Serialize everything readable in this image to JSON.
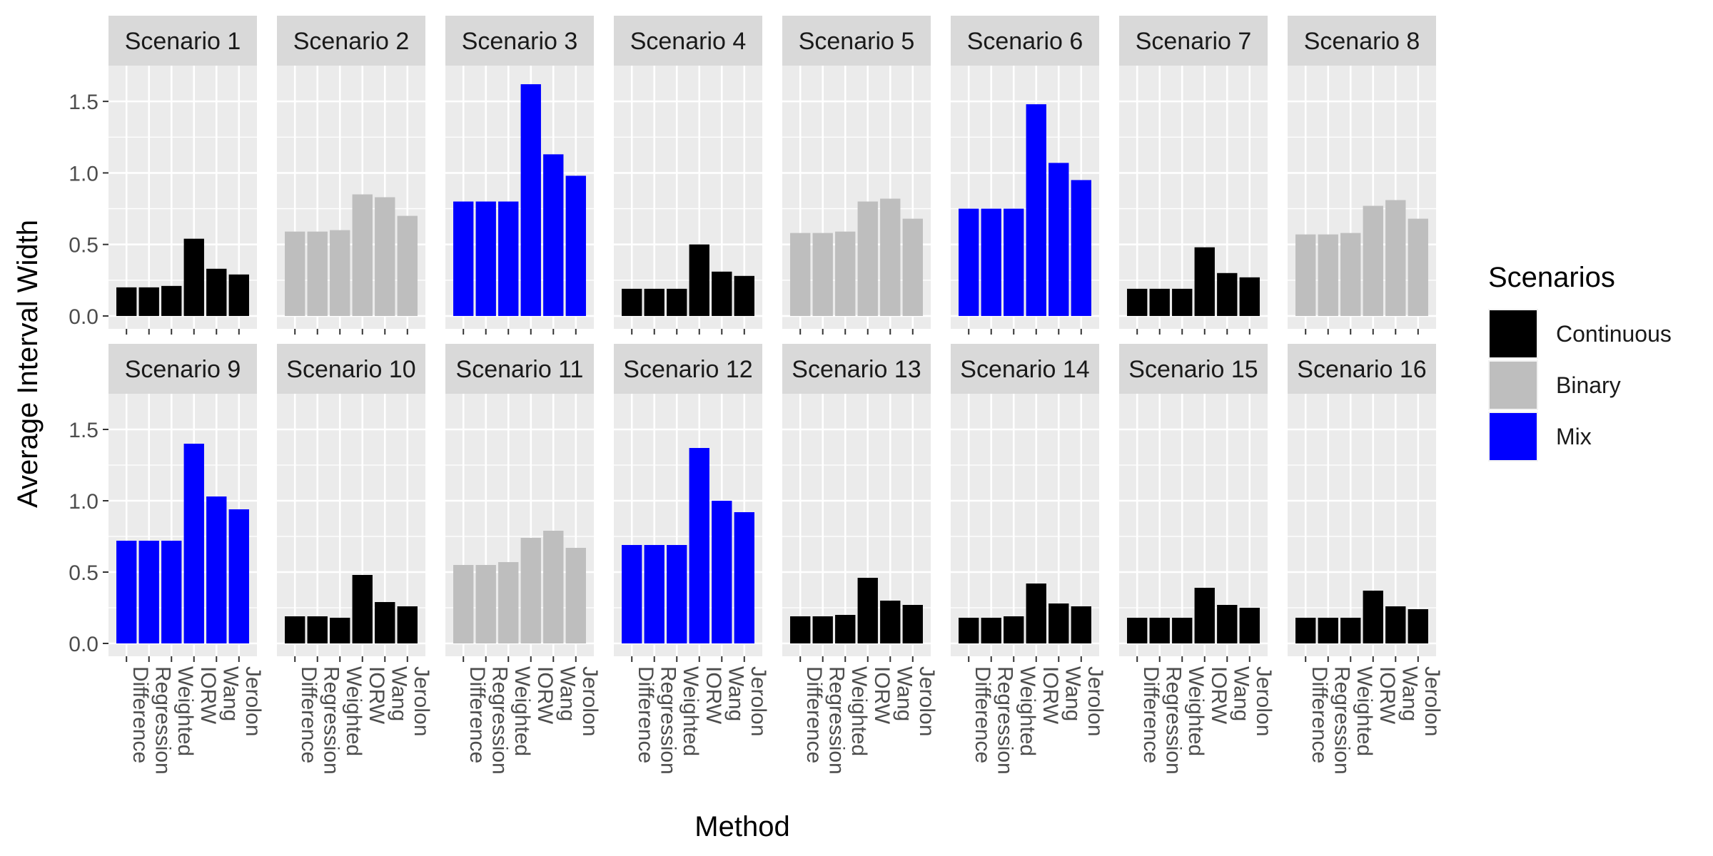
{
  "chart_data": {
    "type": "bar",
    "xlabel": "Method",
    "ylabel": "Average Interval Width",
    "ylim": [
      -0.09,
      1.75
    ],
    "yticks": [
      0.0,
      0.5,
      1.0,
      1.5
    ],
    "ytick_labels": [
      "0.0",
      "0.5",
      "1.0",
      "1.5"
    ],
    "categories": [
      "Difference",
      "Regression",
      "Weighted",
      "IORW",
      "Wang",
      "Jerolon"
    ],
    "legend": {
      "title": "Scenarios",
      "placement": "right",
      "entries": [
        {
          "name": "Continuous",
          "color": "#000000"
        },
        {
          "name": "Binary",
          "color": "#BEBEBE"
        },
        {
          "name": "Mix",
          "color": "#0000FF"
        }
      ]
    },
    "panels": [
      {
        "title": "Scenario 1",
        "group": "Continuous",
        "values": [
          0.2,
          0.2,
          0.21,
          0.54,
          0.33,
          0.29
        ]
      },
      {
        "title": "Scenario 2",
        "group": "Binary",
        "values": [
          0.59,
          0.59,
          0.6,
          0.85,
          0.83,
          0.7
        ]
      },
      {
        "title": "Scenario 3",
        "group": "Mix",
        "values": [
          0.8,
          0.8,
          0.8,
          1.62,
          1.13,
          0.98
        ]
      },
      {
        "title": "Scenario 4",
        "group": "Continuous",
        "values": [
          0.19,
          0.19,
          0.19,
          0.5,
          0.31,
          0.28
        ]
      },
      {
        "title": "Scenario 5",
        "group": "Binary",
        "values": [
          0.58,
          0.58,
          0.59,
          0.8,
          0.82,
          0.68
        ]
      },
      {
        "title": "Scenario 6",
        "group": "Mix",
        "values": [
          0.75,
          0.75,
          0.75,
          1.48,
          1.07,
          0.95
        ]
      },
      {
        "title": "Scenario 7",
        "group": "Continuous",
        "values": [
          0.19,
          0.19,
          0.19,
          0.48,
          0.3,
          0.27
        ]
      },
      {
        "title": "Scenario 8",
        "group": "Binary",
        "values": [
          0.57,
          0.57,
          0.58,
          0.77,
          0.81,
          0.68
        ]
      },
      {
        "title": "Scenario 9",
        "group": "Mix",
        "values": [
          0.72,
          0.72,
          0.72,
          1.4,
          1.03,
          0.94
        ]
      },
      {
        "title": "Scenario 10",
        "group": "Continuous",
        "values": [
          0.19,
          0.19,
          0.18,
          0.48,
          0.29,
          0.26
        ]
      },
      {
        "title": "Scenario 11",
        "group": "Binary",
        "values": [
          0.55,
          0.55,
          0.57,
          0.74,
          0.79,
          0.67
        ]
      },
      {
        "title": "Scenario 12",
        "group": "Mix",
        "values": [
          0.69,
          0.69,
          0.69,
          1.37,
          1.0,
          0.92
        ]
      },
      {
        "title": "Scenario 13",
        "group": "Continuous",
        "values": [
          0.19,
          0.19,
          0.2,
          0.46,
          0.3,
          0.27
        ]
      },
      {
        "title": "Scenario 14",
        "group": "Continuous",
        "values": [
          0.18,
          0.18,
          0.19,
          0.42,
          0.28,
          0.26
        ]
      },
      {
        "title": "Scenario 15",
        "group": "Continuous",
        "values": [
          0.18,
          0.18,
          0.18,
          0.39,
          0.27,
          0.25
        ]
      },
      {
        "title": "Scenario 16",
        "group": "Continuous",
        "values": [
          0.18,
          0.18,
          0.18,
          0.37,
          0.26,
          0.24
        ]
      }
    ]
  }
}
